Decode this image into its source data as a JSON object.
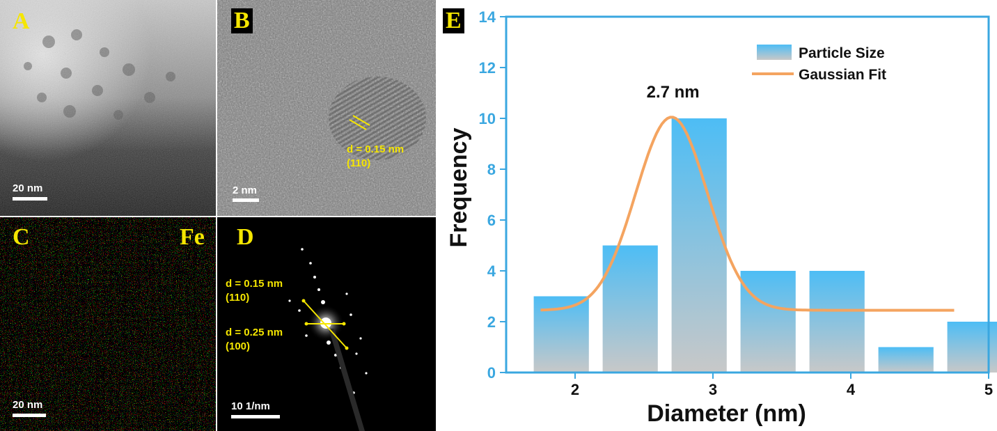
{
  "panels": {
    "a": {
      "letter": "A",
      "scale": "20 nm"
    },
    "b": {
      "letter": "B",
      "scale": "2 nm",
      "d_label": "d = 0.15 nm",
      "plane": "(110)"
    },
    "c": {
      "letter": "C",
      "element": "Fe",
      "scale": "20 nm"
    },
    "d": {
      "letter": "D",
      "scale": "10 1/nm",
      "d1_label": "d = 0.15 nm",
      "plane1": "(110)",
      "d2_label": "d = 0.25 nm",
      "plane2": "(100)"
    },
    "e": {
      "letter": "E"
    }
  },
  "colors": {
    "bar_top": "#4dbdf5",
    "bar_bottom": "#c8c8c8",
    "fit": "#f4a460",
    "axis": "#3aa7e0",
    "annotation_yellow": "#f5e600"
  },
  "chart_data": {
    "type": "bar",
    "x": [
      1.9,
      2.4,
      2.9,
      3.4,
      3.9,
      4.4,
      4.9
    ],
    "values": [
      3,
      5,
      10,
      4,
      4,
      1,
      2
    ],
    "series": [
      {
        "name": "Particle Size",
        "type": "bar",
        "values": [
          3,
          5,
          10,
          4,
          4,
          1,
          2
        ]
      },
      {
        "name": "Gaussian Fit",
        "type": "line",
        "peak": 2.7,
        "x_range": [
          1.75,
          4.75
        ]
      }
    ],
    "xlabel": "Diameter (nm)",
    "ylabel": "Frequency",
    "xlim": [
      1.5,
      5
    ],
    "ylim": [
      0,
      14
    ],
    "xticks": [
      "2",
      "3",
      "4",
      "5"
    ],
    "yticks": [
      "0",
      "2",
      "4",
      "6",
      "8",
      "10",
      "12",
      "14"
    ],
    "annotation": "2.7 nm",
    "legend": [
      "Particle Size",
      "Gaussian Fit"
    ],
    "legend_position": "top-right",
    "grid": false
  }
}
